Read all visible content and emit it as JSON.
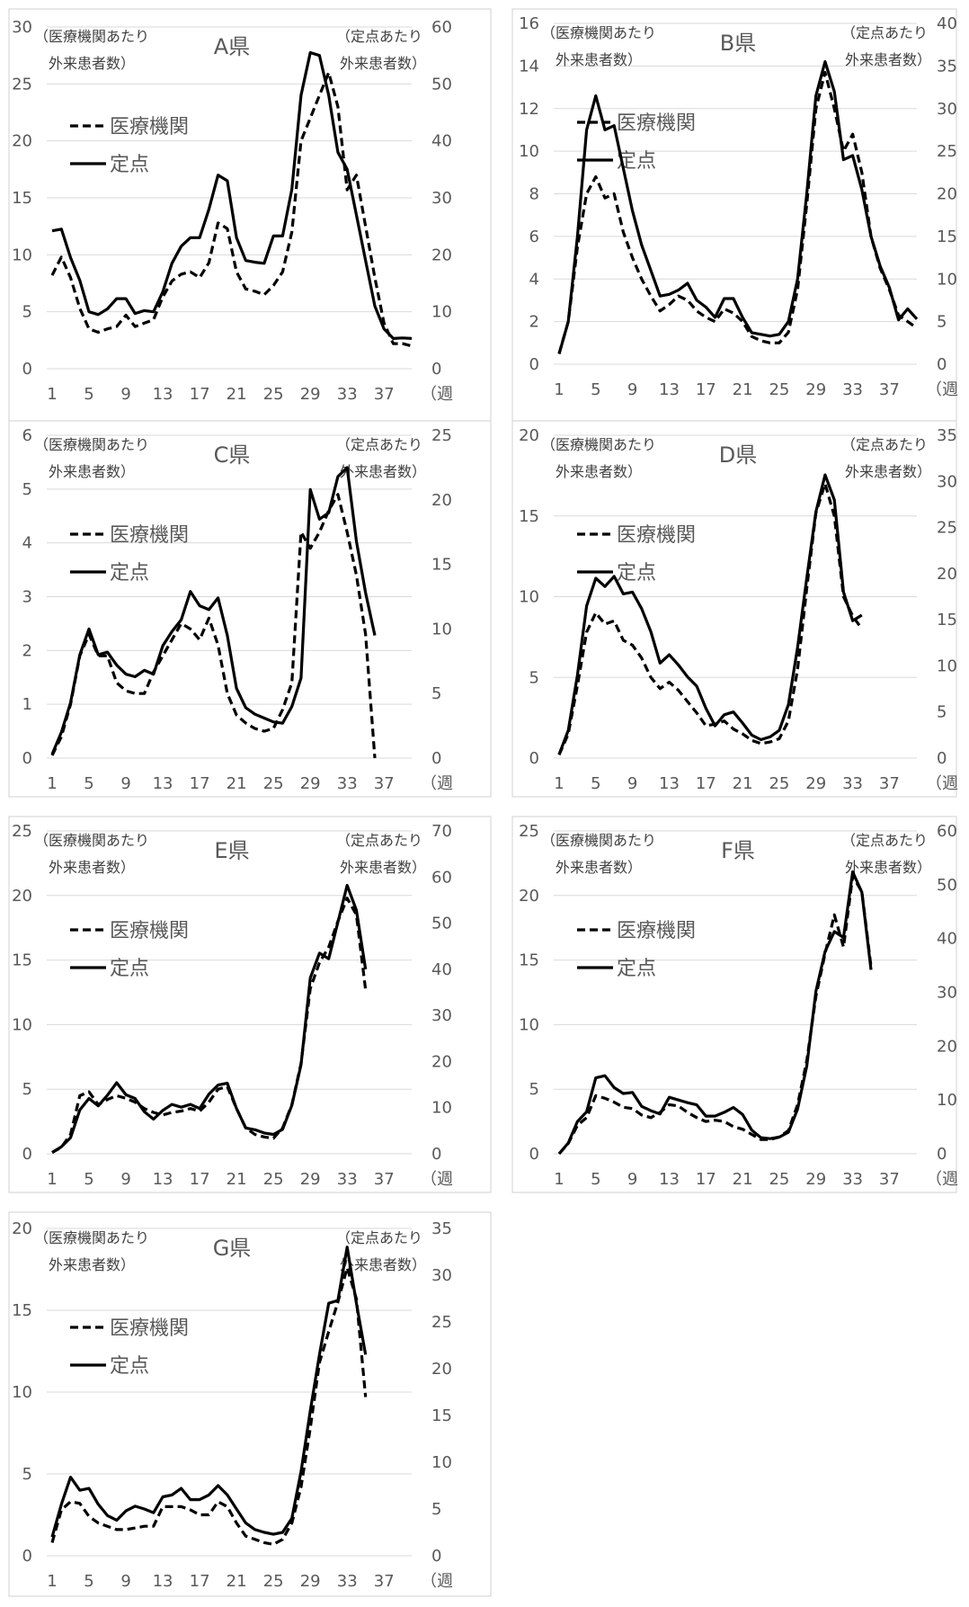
{
  "common": {
    "left_axis_label_line1": "（医療機関あたり",
    "left_axis_label_line2": "外来患者数）",
    "right_axis_label_line1": "（定点あたり",
    "right_axis_label_line2": "外来患者数）",
    "x_unit": "（週",
    "legend_dashed": "医療機関",
    "legend_solid": "定点"
  },
  "chart_data": [
    {
      "type": "line",
      "title": "A県",
      "x": [
        1,
        2,
        3,
        4,
        5,
        6,
        7,
        8,
        9,
        10,
        11,
        12,
        13,
        14,
        15,
        16,
        17,
        18,
        19,
        20,
        21,
        22,
        23,
        24,
        25,
        26,
        27,
        28,
        29,
        30,
        31,
        32,
        33,
        34,
        35,
        36,
        37,
        38,
        39,
        40
      ],
      "left_ylim": [
        0,
        30
      ],
      "right_ylim": [
        0,
        60
      ],
      "left_ticks": [
        "0",
        "5",
        "10",
        "15",
        "20",
        "25",
        "30"
      ],
      "right_ticks": [
        "0",
        "10",
        "20",
        "30",
        "40",
        "50",
        "60"
      ],
      "x_ticks": [
        "1",
        "5",
        "9",
        "13",
        "17",
        "21",
        "25",
        "29",
        "33",
        "37"
      ],
      "series": [
        {
          "name": "医療機関",
          "axis": "left",
          "style": "dashed",
          "values": [
            8.2,
            9.8,
            8,
            5.3,
            3.5,
            3.2,
            3.5,
            3.7,
            4.7,
            3.7,
            4,
            4.3,
            6.3,
            7.7,
            8.3,
            8.5,
            8,
            9.3,
            12.8,
            12.3,
            8.5,
            7,
            6.8,
            6.5,
            7.3,
            8.5,
            12,
            20,
            22,
            24,
            26,
            23,
            15.7,
            17,
            12.5,
            8,
            4,
            2.2,
            2.2,
            2
          ]
        },
        {
          "name": "定点",
          "axis": "right",
          "style": "solid",
          "values": [
            24.2,
            24.5,
            19.5,
            15.5,
            10,
            9.5,
            10.5,
            12.3,
            12.3,
            9.7,
            10.2,
            10,
            13.5,
            18.5,
            21.5,
            23,
            23,
            28,
            34,
            33,
            23,
            19,
            18.7,
            18.5,
            23.3,
            23.3,
            31.5,
            48,
            55.5,
            55,
            48,
            38,
            35,
            27,
            19,
            11,
            7,
            5.3,
            5.4,
            5.3
          ]
        }
      ]
    },
    {
      "type": "line",
      "title": "B県",
      "x": [
        1,
        2,
        3,
        4,
        5,
        6,
        7,
        8,
        9,
        10,
        11,
        12,
        13,
        14,
        15,
        16,
        17,
        18,
        19,
        20,
        21,
        22,
        23,
        24,
        25,
        26,
        27,
        28,
        29,
        30,
        31,
        32,
        33,
        34,
        35,
        36,
        37,
        38,
        39,
        40
      ],
      "left_ylim": [
        0,
        16
      ],
      "right_ylim": [
        0,
        40
      ],
      "left_ticks": [
        "0",
        "2",
        "4",
        "6",
        "8",
        "10",
        "12",
        "14",
        "16"
      ],
      "right_ticks": [
        "0",
        "5",
        "10",
        "15",
        "20",
        "25",
        "30",
        "35",
        "40"
      ],
      "x_ticks": [
        "1",
        "5",
        "9",
        "13",
        "17",
        "21",
        "25",
        "29",
        "33",
        "37"
      ],
      "series": [
        {
          "name": "医療機関",
          "axis": "left",
          "style": "dashed",
          "values": [
            0.5,
            2,
            5.5,
            8,
            8.8,
            7.8,
            8,
            6.2,
            5,
            4,
            3.2,
            2.5,
            2.8,
            3.2,
            3,
            2.5,
            2.2,
            2,
            2.6,
            2.4,
            2,
            1.3,
            1.1,
            1,
            1,
            1.5,
            3.5,
            7.5,
            12,
            13.7,
            12,
            10,
            10.8,
            9,
            6,
            4.5,
            3.5,
            2.3,
            2,
            1.7
          ]
        },
        {
          "name": "定点",
          "axis": "right",
          "style": "solid",
          "values": [
            1.2,
            5,
            15,
            27.5,
            31.5,
            27.5,
            28,
            23,
            18,
            14,
            11,
            8,
            8.2,
            8.7,
            9.5,
            7.5,
            6.7,
            5.5,
            7.7,
            7.7,
            5.5,
            3.7,
            3.5,
            3.3,
            3.5,
            5,
            10,
            20,
            31.5,
            35.5,
            32,
            24,
            24.5,
            20.5,
            15,
            11.5,
            9,
            5.2,
            6.5,
            5.3
          ]
        }
      ]
    },
    {
      "type": "line",
      "title": "C県",
      "x": [
        1,
        2,
        3,
        4,
        5,
        6,
        7,
        8,
        9,
        10,
        11,
        12,
        13,
        14,
        15,
        16,
        17,
        18,
        19,
        20,
        21,
        22,
        23,
        24,
        25,
        26,
        27,
        28,
        29,
        30,
        31,
        32,
        33,
        34,
        35,
        36
      ],
      "left_ylim": [
        0,
        6
      ],
      "right_ylim": [
        0,
        25
      ],
      "left_ticks": [
        "0",
        "1",
        "2",
        "3",
        "4",
        "5",
        "6"
      ],
      "right_ticks": [
        "0",
        "5",
        "10",
        "15",
        "20",
        "25"
      ],
      "x_ticks": [
        "1",
        "5",
        "9",
        "13",
        "17",
        "21",
        "25",
        "29",
        "33",
        "37"
      ],
      "series": [
        {
          "name": "医療機関",
          "axis": "left",
          "style": "dashed",
          "values": [
            0.05,
            0.4,
            1,
            1.9,
            2.3,
            1.9,
            1.9,
            1.4,
            1.25,
            1.2,
            1.2,
            1.6,
            1.9,
            2.2,
            2.5,
            2.4,
            2.2,
            2.6,
            2.1,
            1.2,
            0.8,
            0.65,
            0.55,
            0.5,
            0.55,
            0.9,
            1.4,
            4.2,
            3.9,
            4.2,
            4.6,
            4.9,
            4.2,
            3.4,
            2.3,
            0
          ]
        },
        {
          "name": "定点",
          "axis": "right",
          "style": "solid",
          "values": [
            0.3,
            2,
            4.3,
            8,
            10,
            8,
            8.2,
            7.2,
            6.5,
            6.3,
            6.8,
            6.5,
            8.7,
            9.8,
            10.7,
            12.9,
            11.8,
            11.5,
            12.4,
            9.5,
            5.4,
            3.9,
            3.4,
            3.1,
            2.8,
            2.7,
            4,
            6.2,
            20.8,
            18.5,
            19,
            21.8,
            22.5,
            16.8,
            12.8,
            9.5
          ]
        }
      ]
    },
    {
      "type": "line",
      "title": "D県",
      "x": [
        1,
        2,
        3,
        4,
        5,
        6,
        7,
        8,
        9,
        10,
        11,
        12,
        13,
        14,
        15,
        16,
        17,
        18,
        19,
        20,
        21,
        22,
        23,
        24,
        25,
        26,
        27,
        28,
        29,
        30,
        31,
        32,
        33,
        34
      ],
      "left_ylim": [
        0,
        20
      ],
      "right_ylim": [
        0,
        35
      ],
      "left_ticks": [
        "0",
        "5",
        "10",
        "15",
        "20"
      ],
      "right_ticks": [
        "0",
        "5",
        "10",
        "15",
        "20",
        "25",
        "30",
        "35"
      ],
      "x_ticks": [
        "1",
        "5",
        "9",
        "13",
        "17",
        "21",
        "25",
        "29",
        "33",
        "37"
      ],
      "series": [
        {
          "name": "医療機関",
          "axis": "left",
          "style": "dashed",
          "values": [
            0.2,
            1.5,
            4.5,
            7.8,
            9,
            8.3,
            8.5,
            7.3,
            7,
            6.2,
            5,
            4.3,
            4.7,
            4.2,
            3.5,
            2.8,
            2,
            2.1,
            2.3,
            1.8,
            1.5,
            1.1,
            0.9,
            1,
            1.2,
            2.3,
            5.5,
            10.5,
            15.2,
            17,
            15,
            10,
            8.8,
            8
          ]
        },
        {
          "name": "定点",
          "axis": "right",
          "style": "solid",
          "values": [
            0.4,
            3,
            9,
            16.5,
            19.5,
            18.6,
            19.7,
            17.8,
            18,
            16.2,
            13.7,
            10.3,
            11.2,
            10.1,
            8.8,
            7.8,
            5.4,
            3.5,
            4.7,
            5,
            3.8,
            2.5,
            2,
            2.3,
            3,
            5.8,
            12,
            19.5,
            26.7,
            30.7,
            28,
            18,
            14.9,
            15.5
          ]
        }
      ]
    },
    {
      "type": "line",
      "title": "E県",
      "x": [
        1,
        2,
        3,
        4,
        5,
        6,
        7,
        8,
        9,
        10,
        11,
        12,
        13,
        14,
        15,
        16,
        17,
        18,
        19,
        20,
        21,
        22,
        23,
        24,
        25,
        26,
        27,
        28,
        29,
        30,
        31,
        32,
        33,
        34,
        35
      ],
      "left_ylim": [
        0,
        25
      ],
      "right_ylim": [
        0,
        70
      ],
      "left_ticks": [
        "0",
        "5",
        "10",
        "15",
        "20",
        "25"
      ],
      "right_ticks": [
        "0",
        "10",
        "20",
        "30",
        "40",
        "50",
        "60",
        "70"
      ],
      "x_ticks": [
        "1",
        "5",
        "9",
        "13",
        "17",
        "21",
        "25",
        "29",
        "33",
        "37"
      ],
      "series": [
        {
          "name": "医療機関",
          "axis": "left",
          "style": "dashed",
          "values": [
            0.1,
            0.5,
            1.5,
            4.5,
            4.8,
            3.8,
            4.2,
            4.5,
            4.3,
            4,
            3.5,
            3.2,
            3,
            3.2,
            3.3,
            3.5,
            3.3,
            4,
            5,
            5.2,
            3.5,
            2,
            1.5,
            1.3,
            1.2,
            2,
            3.8,
            7,
            12.8,
            14.8,
            16,
            18,
            19.8,
            18.5,
            12.7
          ]
        },
        {
          "name": "定点",
          "axis": "right",
          "style": "solid",
          "values": [
            0.3,
            1.5,
            3.5,
            9.5,
            12,
            10.4,
            12.7,
            15.4,
            12.8,
            12,
            9.1,
            7.5,
            9.4,
            10.7,
            10.1,
            10.7,
            9.8,
            12.9,
            14.9,
            15.3,
            9.8,
            5.6,
            5.2,
            4.5,
            4.2,
            5.3,
            10.5,
            19.3,
            38.1,
            43.5,
            42.3,
            50.2,
            58.2,
            52.8,
            40
          ]
        }
      ]
    },
    {
      "type": "line",
      "title": "F県",
      "x": [
        1,
        2,
        3,
        4,
        5,
        6,
        7,
        8,
        9,
        10,
        11,
        12,
        13,
        14,
        15,
        16,
        17,
        18,
        19,
        20,
        21,
        22,
        23,
        24,
        25,
        26,
        27,
        28,
        29,
        30,
        31,
        32,
        33,
        34,
        35
      ],
      "left_ylim": [
        0,
        25
      ],
      "right_ylim": [
        0,
        60
      ],
      "left_ticks": [
        "0",
        "5",
        "10",
        "15",
        "20",
        "25"
      ],
      "right_ticks": [
        "0",
        "10",
        "20",
        "30",
        "40",
        "50",
        "60"
      ],
      "x_ticks": [
        "1",
        "5",
        "9",
        "13",
        "17",
        "21",
        "25",
        "29",
        "33",
        "37"
      ],
      "series": [
        {
          "name": "医療機関",
          "axis": "left",
          "style": "dashed",
          "values": [
            0,
            0.8,
            2.2,
            2.8,
            4.5,
            4.3,
            4,
            3.6,
            3.5,
            3,
            2.8,
            3.2,
            3.8,
            3.7,
            3.2,
            2.8,
            2.5,
            2.6,
            2.5,
            2.1,
            1.9,
            1.5,
            1.1,
            1.1,
            1.3,
            1.8,
            3.8,
            7.2,
            12.2,
            15.5,
            18.5,
            16,
            21.5,
            20.3,
            14.5
          ]
        },
        {
          "name": "定点",
          "axis": "right",
          "style": "solid",
          "values": [
            0,
            2,
            6,
            7.8,
            14.1,
            14.5,
            12.3,
            11.2,
            11.4,
            8.8,
            8,
            7.4,
            10.5,
            10,
            9.5,
            9.1,
            7,
            7,
            7.7,
            8.6,
            7.3,
            4.4,
            3,
            2.8,
            3.1,
            4,
            8.3,
            16.3,
            30.2,
            37.6,
            41.3,
            40.2,
            52.4,
            48.6,
            34.2
          ]
        }
      ]
    },
    {
      "type": "line",
      "title": "G県",
      "x": [
        1,
        2,
        3,
        4,
        5,
        6,
        7,
        8,
        9,
        10,
        11,
        12,
        13,
        14,
        15,
        16,
        17,
        18,
        19,
        20,
        21,
        22,
        23,
        24,
        25,
        26,
        27,
        28,
        29,
        30,
        31,
        32,
        33,
        34,
        35
      ],
      "left_ylim": [
        0,
        20
      ],
      "right_ylim": [
        0,
        35
      ],
      "left_ticks": [
        "0",
        "5",
        "10",
        "15",
        "20"
      ],
      "right_ticks": [
        "0",
        "5",
        "10",
        "15",
        "20",
        "25",
        "30",
        "35"
      ],
      "x_ticks": [
        "1",
        "5",
        "9",
        "13",
        "17",
        "21",
        "25",
        "29",
        "33",
        "37"
      ],
      "series": [
        {
          "name": "医療機関",
          "axis": "left",
          "style": "dashed",
          "values": [
            0.8,
            2.8,
            3.3,
            3.2,
            2.4,
            2,
            1.8,
            1.6,
            1.6,
            1.7,
            1.8,
            1.8,
            3,
            3,
            3,
            2.8,
            2.5,
            2.5,
            3.3,
            3,
            2,
            1.2,
            1,
            0.8,
            0.7,
            1,
            2,
            4.2,
            7.8,
            11.8,
            13.7,
            15.5,
            17.6,
            15.7,
            9.7
          ]
        },
        {
          "name": "定点",
          "axis": "right",
          "style": "solid",
          "values": [
            2,
            5.5,
            8.4,
            7,
            7.2,
            5.5,
            4.3,
            3.8,
            4.8,
            5.3,
            5,
            4.6,
            6.3,
            6.5,
            7.2,
            6,
            6,
            6.5,
            7.5,
            6.5,
            5,
            3.5,
            2.8,
            2.5,
            2.3,
            2.5,
            4,
            9,
            15.5,
            21.5,
            27,
            27.3,
            33,
            27,
            21.5
          ]
        }
      ]
    }
  ]
}
